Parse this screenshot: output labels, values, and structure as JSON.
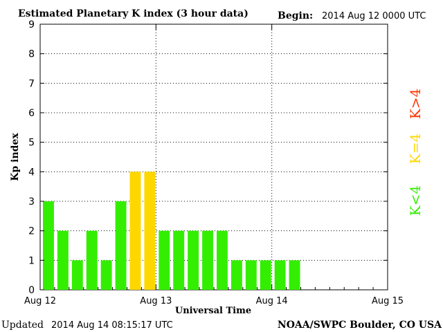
{
  "header": {
    "title": "Estimated Planetary K index (3 hour data)",
    "begin_label": "Begin:",
    "begin_value": "2014 Aug 12 0000 UTC"
  },
  "footer": {
    "updated_label": "Updated",
    "updated_value": "2014 Aug 14 08:15:17 UTC",
    "source": "NOAA/SWPC Boulder, CO USA"
  },
  "legend": {
    "high": {
      "label": "K>4",
      "color": "#ff3300"
    },
    "mid": {
      "label": "K=4",
      "color": "#ffd700"
    },
    "low": {
      "label": "K<4",
      "color": "#33ee00"
    }
  },
  "chart_data": {
    "type": "bar",
    "title": "Estimated Planetary K index (3 hour data)",
    "xlabel": "Universal Time",
    "ylabel": "Kp index",
    "ylim": [
      0,
      9
    ],
    "yticks": [
      0,
      1,
      2,
      3,
      4,
      5,
      6,
      7,
      8,
      9
    ],
    "xticks": [
      "Aug 12",
      "Aug 13",
      "Aug 14",
      "Aug 15"
    ],
    "x_start": "2014 Aug 12 00:00 UTC",
    "bin_hours": 3,
    "grid": true,
    "colors": {
      "below4": "#33ee00",
      "equal4": "#ffd700",
      "above4": "#ff3300"
    },
    "values": [
      3,
      2,
      1,
      2,
      1,
      3,
      4,
      4,
      2,
      2,
      2,
      2,
      2,
      1,
      1,
      1,
      1,
      1
    ]
  }
}
